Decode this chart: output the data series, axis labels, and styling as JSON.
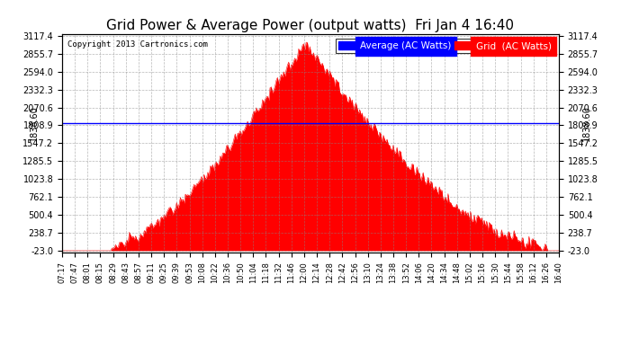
{
  "title": "Grid Power & Average Power (output watts)  Fri Jan 4 16:40",
  "copyright": "Copyright 2013 Cartronics.com",
  "y_min": -23.0,
  "y_max": 3117.4,
  "yticks": [
    -23.0,
    238.7,
    500.4,
    762.1,
    1023.8,
    1285.5,
    1547.2,
    1808.9,
    2070.6,
    2332.3,
    2594.0,
    2855.7,
    3117.4
  ],
  "avg_line_value": 1838.6,
  "avg_line_label": "1838.60",
  "fill_color": "#FF0000",
  "line_color": "#FF0000",
  "avg_line_color": "#0000FF",
  "background_color": "#FFFFFF",
  "grid_color": "#888888",
  "title_fontsize": 11,
  "legend_avg_label": "Average (AC Watts)",
  "legend_grid_label": "Grid  (AC Watts)",
  "legend_avg_bg": "#0000FF",
  "legend_grid_bg": "#FF0000",
  "xtick_labels": [
    "07:17",
    "07:47",
    "08:01",
    "08:15",
    "08:29",
    "08:43",
    "08:57",
    "09:11",
    "09:25",
    "09:39",
    "09:53",
    "10:08",
    "10:22",
    "10:36",
    "10:50",
    "11:04",
    "11:18",
    "11:32",
    "11:46",
    "12:00",
    "12:14",
    "12:28",
    "12:42",
    "12:56",
    "13:10",
    "13:24",
    "13:38",
    "13:52",
    "14:06",
    "14:20",
    "14:34",
    "14:48",
    "15:02",
    "15:16",
    "15:30",
    "15:44",
    "15:58",
    "16:12",
    "16:26",
    "16:40"
  ],
  "peak_value": 2980,
  "n_points": 400
}
